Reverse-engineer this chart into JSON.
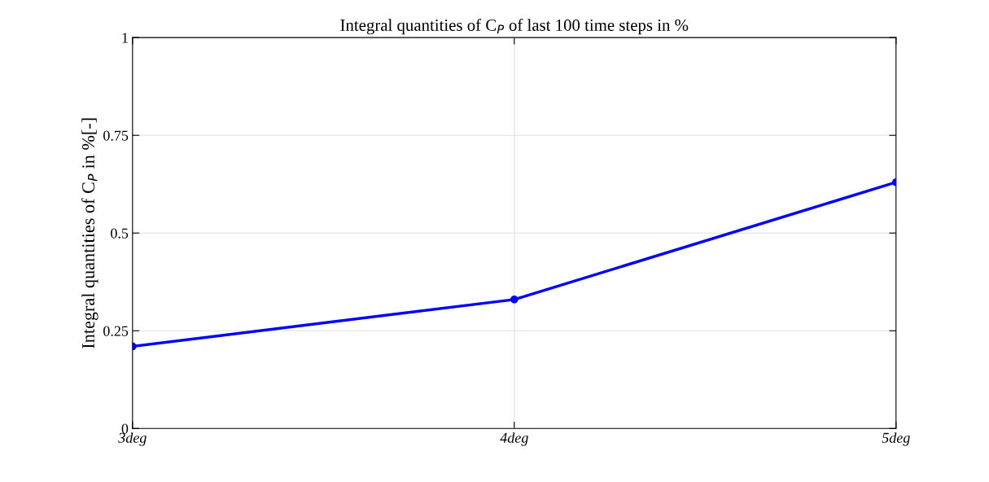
{
  "chart_data": {
    "type": "line",
    "title": "Integral quantities of C$_{P}$ of last 100 time steps in %",
    "ylabel": "Integral quantities of C$_{P}$ in %[-]",
    "categories": [
      "3deg",
      "4deg",
      "5deg"
    ],
    "series": [
      {
        "color": "#0000ff",
        "values": [
          0.21,
          0.33,
          0.63
        ]
      }
    ],
    "ylim": [
      0,
      1
    ],
    "yticks": [
      0,
      0.25,
      0.5,
      0.75,
      1
    ],
    "grid": true,
    "marker": "circle",
    "line_style": "solid"
  }
}
